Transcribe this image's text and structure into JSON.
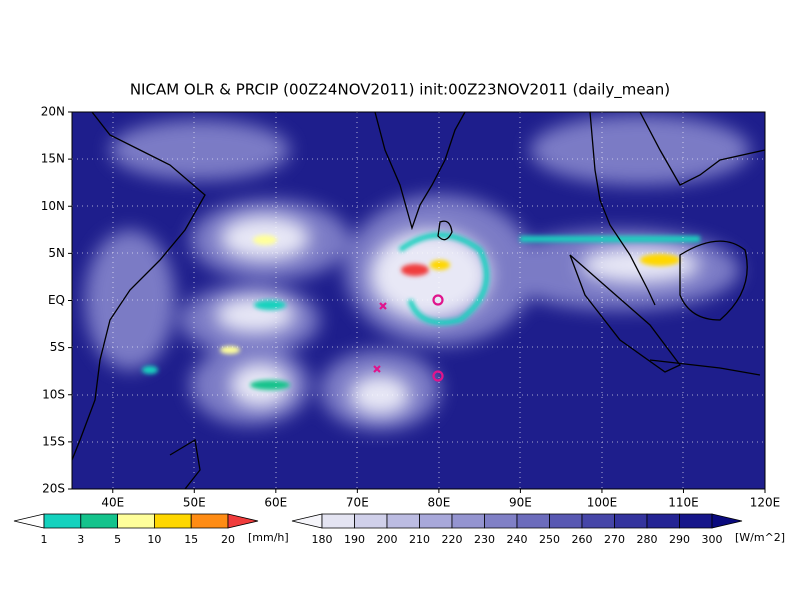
{
  "header": {
    "title": "NICAM OLR & PRCIP (00Z24NOV2011) init:00Z23NOV2011 (daily_mean)"
  },
  "map": {
    "lat_labels": [
      "20N",
      "15N",
      "10N",
      "5N",
      "EQ",
      "5S",
      "10S",
      "15S",
      "20S"
    ],
    "lon_labels": [
      "40E",
      "50E",
      "60E",
      "70E",
      "80E",
      "90E",
      "100E",
      "110E",
      "120E"
    ]
  },
  "precip_colorbar": {
    "labels": [
      "1",
      "3",
      "5",
      "10",
      "15",
      "20"
    ],
    "unit": "[mm/h]",
    "colors": [
      "#ffffff",
      "#14d2be",
      "#14c38c",
      "#ffff9b",
      "#ffd700",
      "#ff8c14",
      "#f03c3c"
    ]
  },
  "olr_colorbar": {
    "labels": [
      "180",
      "190",
      "200",
      "210",
      "220",
      "230",
      "240",
      "250",
      "260",
      "270",
      "280",
      "290",
      "300"
    ],
    "unit": "[W/m^2]",
    "colors": [
      "#f5f5fa",
      "#e4e4f2",
      "#d0d0ea",
      "#bcbce2",
      "#a8a8da",
      "#9494d0",
      "#8080c6",
      "#6c6cbc",
      "#5858b2",
      "#4646a8",
      "#34349e",
      "#242494",
      "#16168a",
      "#0a0a7e"
    ]
  }
}
